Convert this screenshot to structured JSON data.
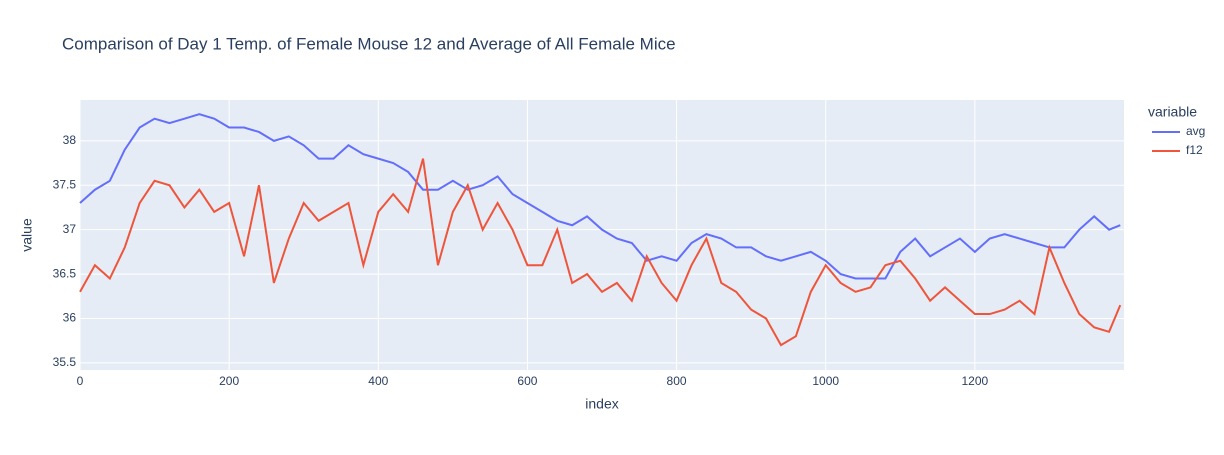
{
  "chart_data": {
    "type": "line",
    "title": "Comparison of Day 1 Temp. of Female Mouse 12 and Average of All Female Mice",
    "x_label": "index",
    "y_label": "value",
    "legend_title": "variable",
    "legend_position": "right",
    "grid": true,
    "x": [
      0,
      20,
      40,
      60,
      80,
      100,
      120,
      140,
      160,
      180,
      200,
      220,
      240,
      260,
      280,
      300,
      320,
      340,
      360,
      380,
      400,
      420,
      440,
      460,
      480,
      500,
      520,
      540,
      560,
      580,
      600,
      620,
      640,
      660,
      680,
      700,
      720,
      740,
      760,
      780,
      800,
      820,
      840,
      860,
      880,
      900,
      920,
      940,
      960,
      980,
      1000,
      1020,
      1040,
      1060,
      1080,
      1100,
      1120,
      1140,
      1160,
      1180,
      1200,
      1220,
      1240,
      1260,
      1280,
      1300,
      1320,
      1340,
      1360,
      1380,
      1395
    ],
    "series": [
      {
        "name": "avg",
        "color": "#636efa",
        "values": [
          37.3,
          37.45,
          37.55,
          37.9,
          38.15,
          38.25,
          38.2,
          38.25,
          38.3,
          38.25,
          38.15,
          38.15,
          38.1,
          38.0,
          38.05,
          37.95,
          37.8,
          37.8,
          37.95,
          37.85,
          37.8,
          37.75,
          37.65,
          37.45,
          37.45,
          37.55,
          37.45,
          37.5,
          37.6,
          37.4,
          37.3,
          37.2,
          37.1,
          37.05,
          37.15,
          37.0,
          36.9,
          36.85,
          36.65,
          36.7,
          36.65,
          36.85,
          36.95,
          36.9,
          36.8,
          36.8,
          36.7,
          36.65,
          36.7,
          36.75,
          36.65,
          36.5,
          36.45,
          36.45,
          36.45,
          36.75,
          36.9,
          36.7,
          36.8,
          36.9,
          36.75,
          36.9,
          36.95,
          36.9,
          36.85,
          36.8,
          36.8,
          37.0,
          37.15,
          37.0,
          37.05
        ]
      },
      {
        "name": "f12",
        "color": "#EF553B",
        "values": [
          36.3,
          36.6,
          36.45,
          36.8,
          37.3,
          37.55,
          37.5,
          37.25,
          37.45,
          37.2,
          37.3,
          36.7,
          37.5,
          36.4,
          36.9,
          37.3,
          37.1,
          37.2,
          37.3,
          36.6,
          37.2,
          37.4,
          37.2,
          37.8,
          36.6,
          37.2,
          37.5,
          37.0,
          37.3,
          37.0,
          36.6,
          36.6,
          37.0,
          36.4,
          36.5,
          36.3,
          36.4,
          36.2,
          36.7,
          36.4,
          36.2,
          36.6,
          36.9,
          36.4,
          36.3,
          36.1,
          36.0,
          35.7,
          35.8,
          36.3,
          36.6,
          36.4,
          36.3,
          36.35,
          36.6,
          36.65,
          36.45,
          36.2,
          36.35,
          36.2,
          36.05,
          36.05,
          36.1,
          36.2,
          36.05,
          36.8,
          36.4,
          36.05,
          35.9,
          35.85,
          36.15
        ]
      }
    ],
    "xlim": [
      0,
      1400
    ],
    "xticks": [
      0,
      200,
      400,
      600,
      800,
      1000,
      1200
    ],
    "ylim": [
      35.42,
      38.46
    ],
    "yticks": [
      35.5,
      36,
      36.5,
      37,
      37.5,
      38
    ]
  }
}
